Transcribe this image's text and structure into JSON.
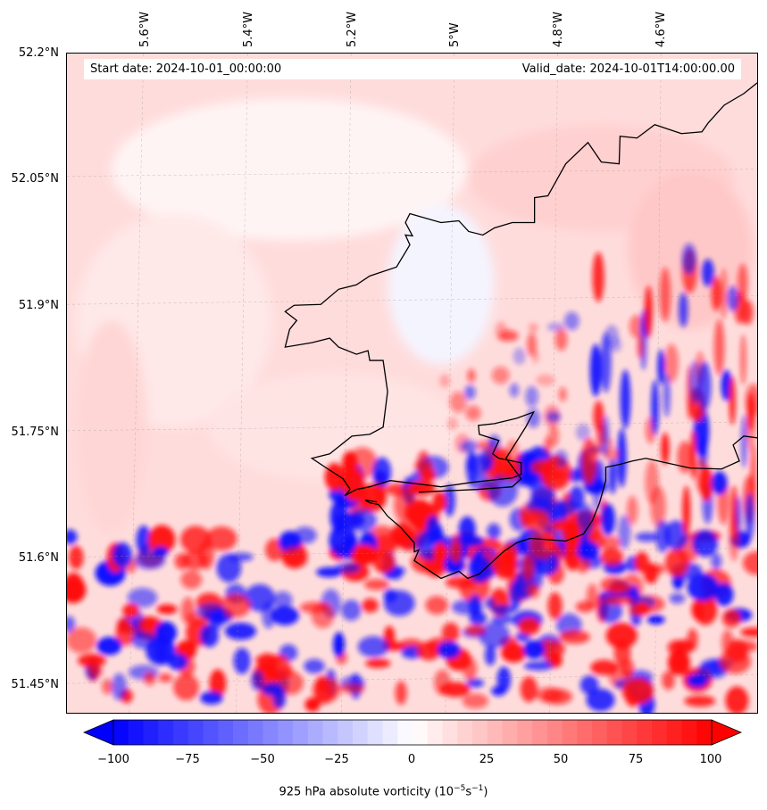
{
  "map": {
    "start_date": "Start date: 2024-10-01_00:00:00",
    "valid_date": "Valid_date: 2024-10-01T14:00:00.00",
    "lat_labels": [
      "52.2°N",
      "52.05°N",
      "51.9°N",
      "51.75°N",
      "51.6°N",
      "51.45°N"
    ],
    "lon_labels": [
      "5.6°W",
      "5.4°W",
      "5.2°W",
      "5°W",
      "4.8°W",
      "4.6°W"
    ],
    "colormap": "bwr",
    "colors": {
      "negative": "#0000ff",
      "zero": "#ffffff",
      "positive": "#ff0000",
      "coastline": "#000000"
    }
  },
  "colorbar": {
    "ticks": [
      "−100",
      "−75",
      "−50",
      "−25",
      "0",
      "25",
      "50",
      "75",
      "100"
    ],
    "range": [
      -100,
      100
    ],
    "label_main": "925 hPa absolute vorticity (10",
    "label_exp1": "−5",
    "label_mid": "s",
    "label_exp2": "−1",
    "label_end": ")"
  }
}
